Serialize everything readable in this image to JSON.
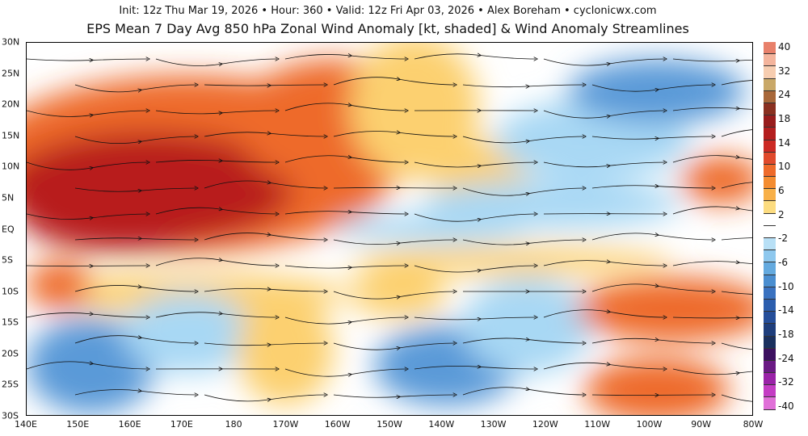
{
  "header": {
    "line1": "Init: 12z Thu Mar 19, 2026  •  Hour: 360  •  Valid: 12z Fri Apr 03, 2026  •  Alex Boreham  •  cyclonicwx.com",
    "title": "EPS Mean 7 Day Avg 850 hPa Zonal Wind Anomaly [kt, shaded] & Wind Anomaly Streamlines"
  },
  "axes": {
    "lat_labels": [
      "30N",
      "25N",
      "20N",
      "15N",
      "10N",
      "5N",
      "EQ",
      "5S",
      "10S",
      "15S",
      "20S",
      "25S",
      "30S"
    ],
    "lon_labels": [
      "140E",
      "150E",
      "160E",
      "170E",
      "180",
      "170W",
      "160W",
      "150W",
      "140W",
      "130W",
      "120W",
      "110W",
      "100W",
      "90W",
      "80W"
    ]
  },
  "colorbar": {
    "labels": [
      "40",
      "32",
      "24",
      "18",
      "14",
      "10",
      "6",
      "2",
      "-2",
      "-6",
      "-10",
      "-14",
      "-18",
      "-24",
      "-32",
      "-40"
    ],
    "colors": [
      "#e8806a",
      "#f4b49c",
      "#f7cdb0",
      "#c9a868",
      "#a8683a",
      "#8a3020",
      "#981c1c",
      "#b41e1e",
      "#cc2a24",
      "#e04a2c",
      "#ee6a2a",
      "#f48c30",
      "#f8b048",
      "#fcdc80",
      "#ffffff",
      "#ffffff",
      "#b8e0f6",
      "#8ec8ee",
      "#64aadf",
      "#4a8ed0",
      "#3a72c0",
      "#2c5eae",
      "#254e9a",
      "#1e3e7c",
      "#1a305e",
      "#3c1060",
      "#6a1a84",
      "#9a22a8",
      "#c43cc4",
      "#e070d8"
    ]
  },
  "field_colors": {
    "pos_strong": "#b81e1e",
    "pos_mid": "#ee6a2a",
    "pos_weak": "#fcd070",
    "neg_weak": "#a8d8f4",
    "neg_mid": "#5a9ad8",
    "neg_strong": "#2a5aa8"
  }
}
